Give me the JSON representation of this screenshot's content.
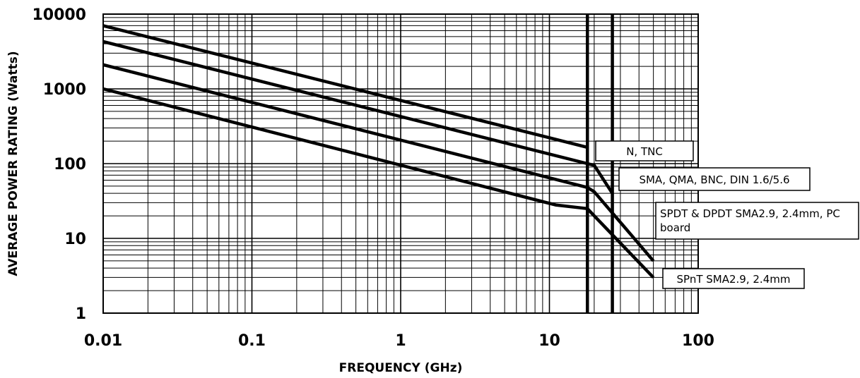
{
  "chart_data": {
    "type": "line",
    "title": "",
    "xlabel": "FREQUENCY (GHz)",
    "ylabel": "AVERAGE POWER RATING (Watts)",
    "x_scale": "log",
    "y_scale": "log",
    "xlim": [
      0.01,
      100
    ],
    "ylim": [
      1,
      10000
    ],
    "x_ticks": [
      "0.01",
      "0.1",
      "1",
      "10",
      "100"
    ],
    "y_ticks": [
      "10000",
      "1000",
      "100",
      "10",
      "1"
    ],
    "grid": true,
    "vertical_markers": [
      18,
      26.5
    ],
    "series": [
      {
        "name": "N, TNC",
        "x": [
          0.01,
          18
        ],
        "y": [
          7000,
          165
        ]
      },
      {
        "name": "SMA, QMA, BNC, DIN 1.6/5.6",
        "x": [
          0.01,
          18,
          20,
          26.5
        ],
        "y": [
          4300,
          100,
          95,
          40
        ]
      },
      {
        "name": "SPDT & DPDT SMA2.9, 2.4mm, PC board",
        "x": [
          0.01,
          18,
          20,
          50
        ],
        "y": [
          2100,
          48,
          42,
          5
        ]
      },
      {
        "name": "SPnT SMA2.9, 2.4mm",
        "x": [
          0.01,
          11,
          18,
          20,
          50
        ],
        "y": [
          1000,
          28,
          25,
          20,
          3
        ]
      }
    ]
  }
}
